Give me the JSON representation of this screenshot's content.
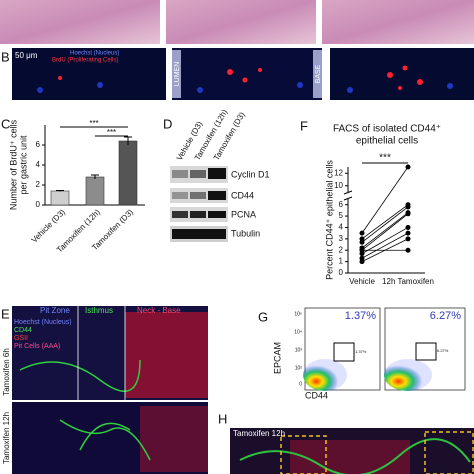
{
  "panel_labels": [
    "B",
    "C",
    "D",
    "F",
    "E",
    "G",
    "H"
  ],
  "panel_b": {
    "scale": "50 μm",
    "legend": [
      "Hoechst (Nucleus)",
      "BrdU (Proliferating Cells)"
    ],
    "lumen": "LUMEN",
    "base": "BASE"
  },
  "chart_data": [
    {
      "type": "bar",
      "ylabel": [
        "Number of BrdU⁺ cells",
        "per gastric unit"
      ],
      "categories": [
        "Vehicle (D3)",
        "Tamoxifen (12h)",
        "Tamoxifen (D3)"
      ],
      "values": [
        1.4,
        2.8,
        6.4
      ],
      "errors": [
        0.05,
        0.2,
        0.4
      ],
      "colors": [
        "#cfcfcf",
        "#8c8c8c",
        "#555555"
      ],
      "ylim": [
        0,
        8
      ],
      "yticks": [
        0,
        2,
        4,
        6
      ],
      "annotations": [
        "***",
        "***"
      ]
    },
    {
      "type": "paired",
      "title": [
        "FACS of isolated CD44⁺",
        "epithelial cells"
      ],
      "ylabel": "Percent CD44⁺ epithelial cells",
      "categories": [
        "Vehicle",
        "12h Tamoxifen"
      ],
      "before": [
        3.5,
        3.0,
        2.7,
        2.2,
        2.0,
        1.7,
        1.3,
        1.0,
        2.0
      ],
      "after": [
        13,
        6.0,
        5.8,
        5.3,
        5.2,
        4.0,
        3.5,
        3.0,
        2.0
      ],
      "ylim": [
        0,
        13
      ],
      "axis_break": [
        6.5,
        9
      ],
      "yticks": [
        0,
        1,
        2,
        3,
        4,
        5,
        6,
        10,
        12
      ],
      "annotation": "***"
    }
  ],
  "panel_d": {
    "lanes": [
      "Vehicle (D3)",
      "Tamoxifen (12h)",
      "Tamoxifen (D3)"
    ],
    "rows": [
      "Cyclin D1",
      "CD44",
      "PCNA",
      "Tubulin"
    ]
  },
  "panel_e": {
    "columns": [
      "Pit Zone",
      "Isthmus",
      "Neck - Base"
    ],
    "legend": [
      "Hoechst (Nucleus)",
      "CD44",
      "GSII",
      "Pit Cells (AAA)"
    ],
    "rows": [
      "Tamoxifen 6h",
      "Tamoxifen 12h"
    ]
  },
  "panel_g": {
    "percentages": [
      "1.37%",
      "6.27%"
    ],
    "gate_labels": [
      "1.37%",
      "6.27%"
    ],
    "ylabel": "EPCAM",
    "xlabel": "CD44",
    "yticks": [
      "10⁵",
      "10⁴",
      "10³",
      "10²",
      "0"
    ]
  },
  "panel_h": {
    "label": "Tamoxifen 12h"
  }
}
